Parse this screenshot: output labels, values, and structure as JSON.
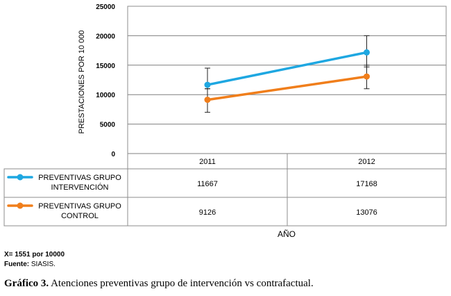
{
  "chart_data": {
    "type": "line",
    "ylabel": "PRESTACIONES POR 10 000",
    "xlabel": "AÑO",
    "categories": [
      "2011",
      "2012"
    ],
    "ylim": [
      0,
      25000
    ],
    "yticks": [
      0,
      5000,
      10000,
      15000,
      20000,
      25000
    ],
    "grid": true,
    "legend_placement": "data-table-left",
    "series": [
      {
        "name": "PREVENTIVAS GRUPO INTERVENCIÓN",
        "name_lines": [
          "PREVENTIVAS GRUPO",
          "INTERVENCIÓN"
        ],
        "values": [
          11667,
          17168
        ],
        "value_labels": [
          "11667",
          "17168"
        ],
        "error_low": [
          11000,
          14700
        ],
        "error_high": [
          14500,
          20000
        ],
        "color": "#1ea7e1"
      },
      {
        "name": "PREVENTIVAS GRUPO CONTROL",
        "name_lines": [
          "PREVENTIVAS GRUPO",
          "CONTROL"
        ],
        "values": [
          9126,
          13076
        ],
        "value_labels": [
          "9126",
          "13076"
        ],
        "error_low": [
          7000,
          11000
        ],
        "error_high": [
          11000,
          15000
        ],
        "color": "#f07e1b"
      }
    ]
  },
  "notes": {
    "mean_label": "X= 1551 por 10000",
    "source_label": "Fuente:",
    "source_value": " SIASIS."
  },
  "caption": {
    "label": "Gráfico 3.",
    "text": " Atenciones preventivas grupo de intervención vs contrafactual."
  }
}
